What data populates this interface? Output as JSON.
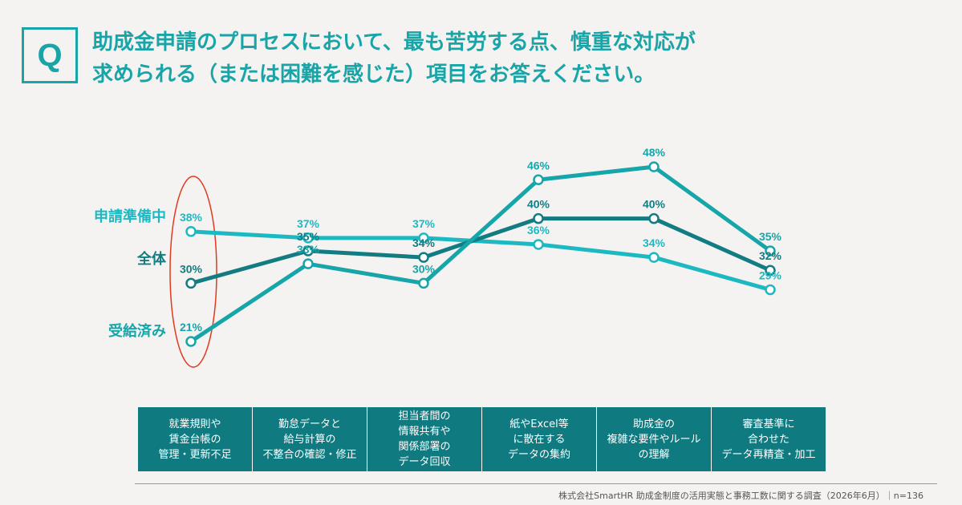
{
  "question": {
    "mark": "Q",
    "line1": "助成金申請のプロセスにおいて、最も苦労する点、慎重な対応が",
    "line2": "求められる（または困難を感じた）項目をお答えください。"
  },
  "colors": {
    "accent": "#19a4a8",
    "applicant": "#1cb9c3",
    "overall": "#137c82",
    "received": "#16a5a9",
    "highlight": "#e03a1e",
    "category_bg": "#0f7a80"
  },
  "chart_data": {
    "type": "line",
    "categories": [
      "就業規則や\n賃金台帳の\n管理・更新不足",
      "勤怠データと\n給与計算の\n不整合の確認・修正",
      "担当者間の\n情報共有や\n関係部署の\nデータ回収",
      "紙やExcel等\nに散在する\nデータの集約",
      "助成金の\n複雑な要件やルール\nの理解",
      "審査基準に\n合わせた\nデータ再精査・加工"
    ],
    "series": [
      {
        "name": "申請準備中",
        "values": [
          38,
          37,
          37,
          36,
          34,
          29
        ],
        "labels": [
          "38%",
          "37%",
          "37%",
          "36%",
          "34%",
          "29%"
        ]
      },
      {
        "name": "全体",
        "values": [
          30,
          35,
          34,
          40,
          40,
          32
        ],
        "labels": [
          "30%",
          "35%",
          "34%",
          "40%",
          "40%",
          "32%"
        ]
      },
      {
        "name": "受給済み",
        "values": [
          21,
          33,
          30,
          46,
          48,
          35
        ],
        "labels": [
          "21%",
          "33%",
          "30%",
          "46%",
          "48%",
          "35%"
        ]
      }
    ],
    "unit": "%",
    "highlighted_category_index": 0
  },
  "source": "株式会社SmartHR 助成金制度の活用実態と事務工数に関する調査（2026年6月）｜n=136"
}
